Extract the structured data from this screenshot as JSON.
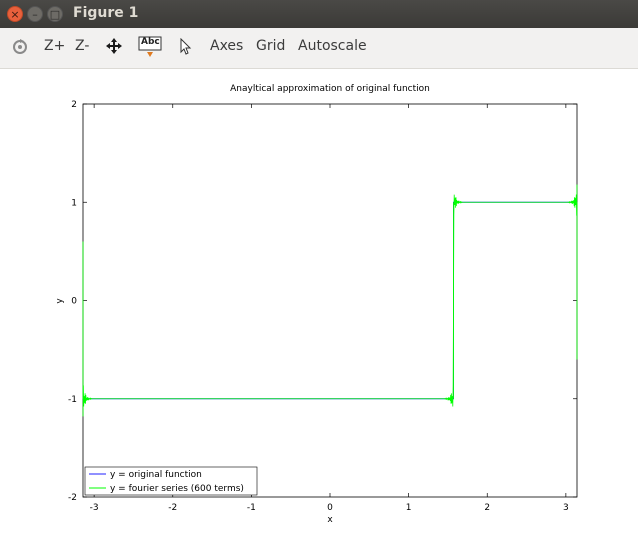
{
  "window": {
    "title": "Figure 1",
    "close_glyph": "×",
    "minimize_glyph": "–",
    "maximize_glyph": "□"
  },
  "toolbar": {
    "zoom_in_label": "Z+",
    "zoom_out_label": "Z-",
    "text_tool_label": "Abc",
    "axes_label": "Axes",
    "grid_label": "Grid",
    "autoscale_label": "Autoscale"
  },
  "icons": {
    "rotate": "rotate-icon",
    "pan": "pan-arrows-icon",
    "text": "text-annotation-icon",
    "select": "pointer-icon"
  },
  "chart_data": {
    "type": "line",
    "title": "Anayltical approximation of original function",
    "xlabel": "x",
    "ylabel": "y",
    "xlim": [
      -3.14159,
      3.14159
    ],
    "ylim": [
      -2,
      2
    ],
    "xticks": [
      -3,
      -2,
      -1,
      0,
      1,
      2,
      3
    ],
    "yticks": [
      -2,
      -1,
      0,
      1,
      2
    ],
    "grid": false,
    "legend_position": "bottom-left",
    "series": [
      {
        "name": "y = original function",
        "color": "#2020ff",
        "x": [
          -3.14159,
          1.5708,
          1.5708,
          3.14159
        ],
        "y": [
          -1,
          -1,
          1,
          1
        ]
      },
      {
        "name": "y = fourier series (600 terms)",
        "color": "#00ff00",
        "x": [
          -3.14159,
          1.5708,
          1.5708,
          3.14159
        ],
        "y": [
          -1,
          -1,
          1,
          1
        ],
        "gibbs_overshoot": 0.18,
        "discontinuities": [
          -3.14159,
          1.5708,
          3.14159
        ]
      }
    ]
  }
}
